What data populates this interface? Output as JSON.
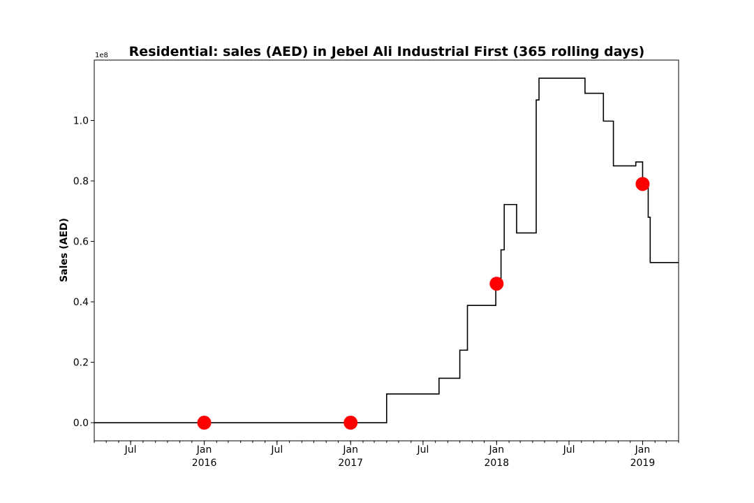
{
  "chart_data": {
    "type": "line",
    "title": "Residential: sales (AED) in Jebel Ali Industrial First (365 rolling days)",
    "xlabel": "",
    "ylabel": "Sales (AED)",
    "y_offset_label": "1e8",
    "x_axis_type": "date",
    "xlim": [
      "2015-04-01",
      "2019-04-01"
    ],
    "ylim": [
      -0.06,
      1.2
    ],
    "y_scale_factor": 100000000,
    "y_ticks": [
      0.0,
      0.2,
      0.4,
      0.6,
      0.8,
      1.0
    ],
    "y_tick_labels": [
      "0.0",
      "0.2",
      "0.4",
      "0.6",
      "0.8",
      "1.0"
    ],
    "x_major_ticks": [
      {
        "date": "2015-07-01",
        "label": "Jul"
      },
      {
        "date": "2016-01-01",
        "label": "Jan\n2016"
      },
      {
        "date": "2016-07-01",
        "label": "Jul"
      },
      {
        "date": "2017-01-01",
        "label": "Jan\n2017"
      },
      {
        "date": "2017-07-01",
        "label": "Jul"
      },
      {
        "date": "2018-01-01",
        "label": "Jan\n2018"
      },
      {
        "date": "2018-07-01",
        "label": "Jul"
      },
      {
        "date": "2019-01-01",
        "label": "Jan\n2019"
      }
    ],
    "x_minor_ticks_monthly": true,
    "grid": false,
    "line_color": "#000000",
    "marker_color": "#ff0000",
    "series": [
      {
        "step": "post",
        "points": [
          {
            "x": "2015-04-01",
            "y": 0.0
          },
          {
            "x": "2017-04-01",
            "y": 0.095
          },
          {
            "x": "2017-08-10",
            "y": 0.147
          },
          {
            "x": "2017-10-01",
            "y": 0.24
          },
          {
            "x": "2017-10-20",
            "y": 0.388
          },
          {
            "x": "2017-12-30",
            "y": 0.455
          },
          {
            "x": "2018-01-12",
            "y": 0.572
          },
          {
            "x": "2018-01-20",
            "y": 0.722
          },
          {
            "x": "2018-02-20",
            "y": 0.628
          },
          {
            "x": "2018-04-10",
            "y": 1.068
          },
          {
            "x": "2018-04-17",
            "y": 1.14
          },
          {
            "x": "2018-08-10",
            "y": 1.09
          },
          {
            "x": "2018-09-25",
            "y": 0.998
          },
          {
            "x": "2018-10-20",
            "y": 0.85
          },
          {
            "x": "2018-12-15",
            "y": 0.863
          },
          {
            "x": "2019-01-01",
            "y": 0.78
          },
          {
            "x": "2019-01-15",
            "y": 0.68
          },
          {
            "x": "2019-01-20",
            "y": 0.53
          },
          {
            "x": "2019-04-01",
            "y": 0.53
          }
        ]
      }
    ],
    "markers": [
      {
        "x": "2016-01-01",
        "y": 0.0
      },
      {
        "x": "2017-01-01",
        "y": 0.0
      },
      {
        "x": "2018-01-01",
        "y": 0.46
      },
      {
        "x": "2019-01-01",
        "y": 0.79
      }
    ]
  }
}
